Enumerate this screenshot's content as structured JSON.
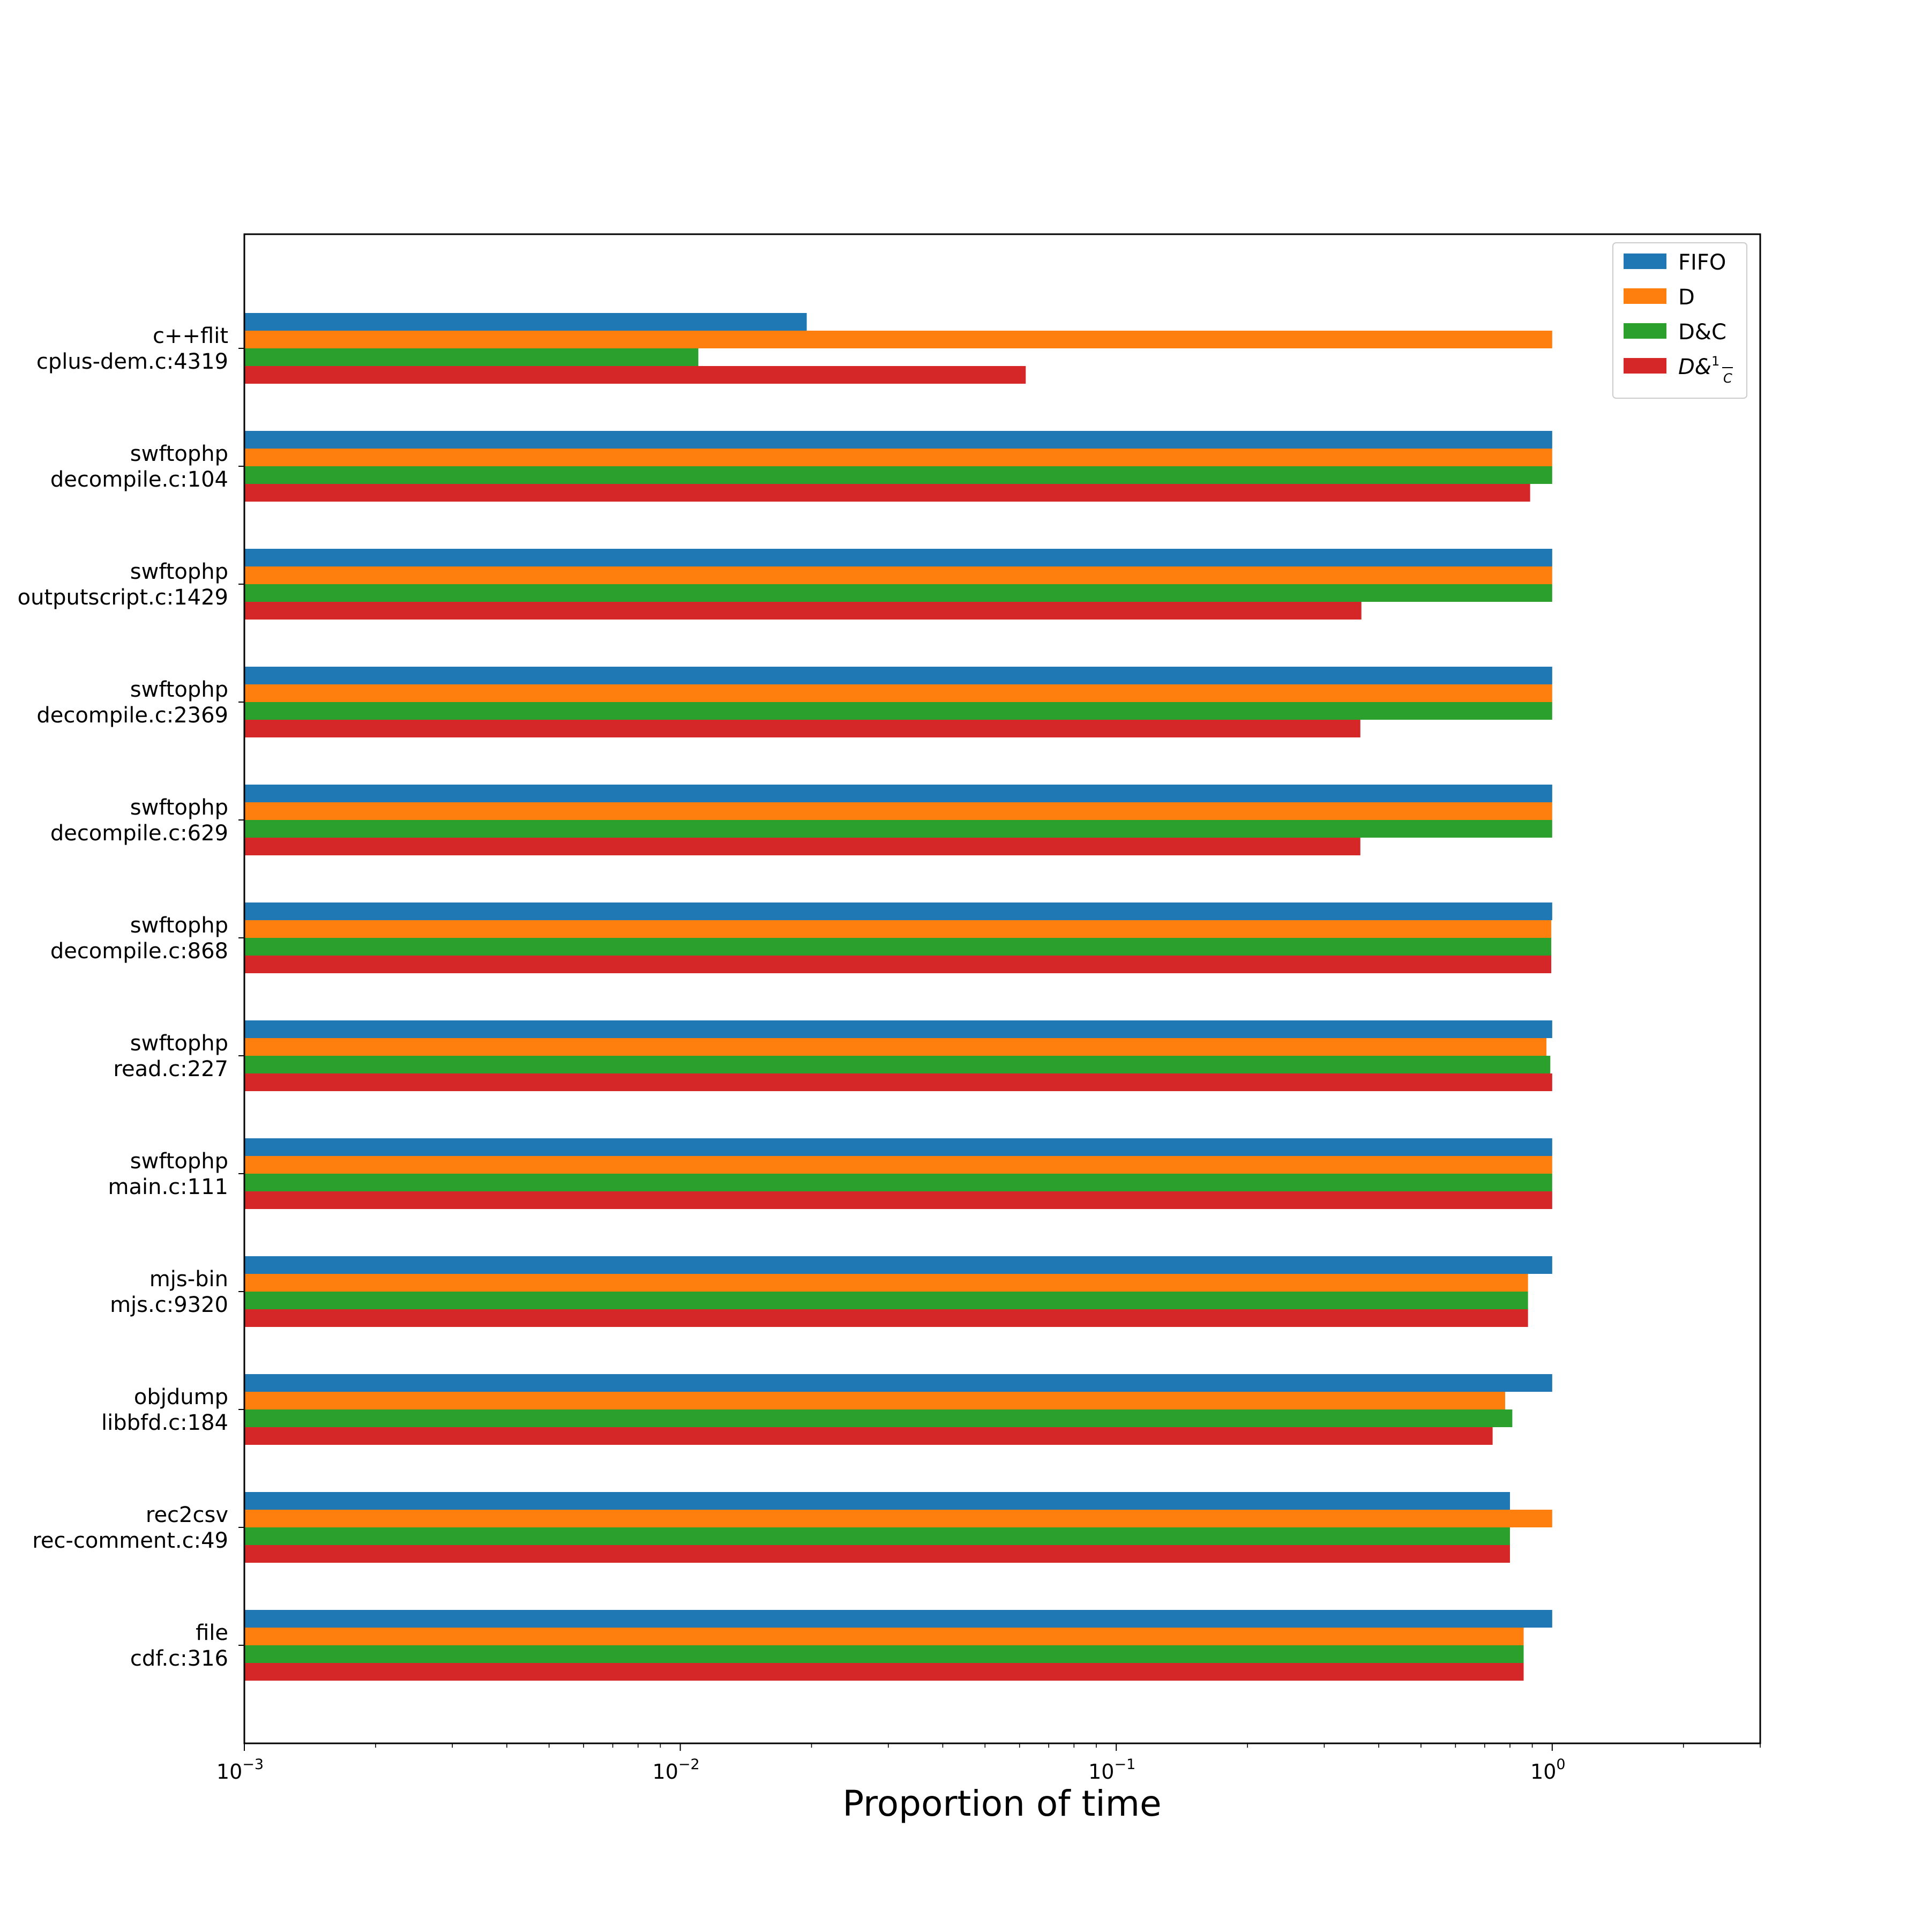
{
  "chart_data": {
    "type": "bar",
    "orientation": "horizontal",
    "xscale": "log",
    "xlim": [
      0.001,
      3
    ],
    "xlabel": "Proportion of time",
    "ylabel": "",
    "title": "",
    "grid": false,
    "legend_position": "top-right",
    "xticks": [
      {
        "base": "10",
        "exp": "−3"
      },
      {
        "base": "10",
        "exp": "−2"
      },
      {
        "base": "10",
        "exp": "−1"
      },
      {
        "base": "10",
        "exp": "0"
      }
    ],
    "categories": [
      [
        "c++flit",
        "cplus-dem.c:4319"
      ],
      [
        "swftophp",
        "decompile.c:104"
      ],
      [
        "swftophp",
        "outputscript.c:1429"
      ],
      [
        "swftophp",
        "decompile.c:2369"
      ],
      [
        "swftophp",
        "decompile.c:629"
      ],
      [
        "swftophp",
        "decompile.c:868"
      ],
      [
        "swftophp",
        "read.c:227"
      ],
      [
        "swftophp",
        "main.c:111"
      ],
      [
        "mjs-bin",
        "mjs.c:9320"
      ],
      [
        "objdump",
        "libbfd.c:184"
      ],
      [
        "rec2csv",
        "rec-comment.c:49"
      ],
      [
        "file",
        "cdf.c:316"
      ]
    ],
    "series": [
      {
        "name": "FIFO",
        "color": "#1f77b4",
        "values": [
          0.0195,
          1.0,
          1.0,
          1.0,
          1.0,
          1.0,
          1.0,
          1.0,
          1.0,
          1.0,
          0.8,
          1.0
        ]
      },
      {
        "name": "D",
        "color": "#ff7f0e",
        "values": [
          1.0,
          1.0,
          1.0,
          1.0,
          1.0,
          0.995,
          0.97,
          1.0,
          0.88,
          0.78,
          1.0,
          0.86
        ]
      },
      {
        "name": "D&C",
        "color": "#2ca02c",
        "values": [
          0.011,
          1.0,
          1.0,
          1.0,
          1.0,
          0.995,
          0.99,
          1.0,
          0.88,
          0.81,
          0.8,
          0.86
        ]
      },
      {
        "name": "D&1/C",
        "color": "#d62728",
        "values": [
          0.062,
          0.89,
          0.365,
          0.363,
          0.363,
          0.995,
          1.0,
          1.0,
          0.88,
          0.73,
          0.8,
          0.86
        ]
      }
    ]
  }
}
